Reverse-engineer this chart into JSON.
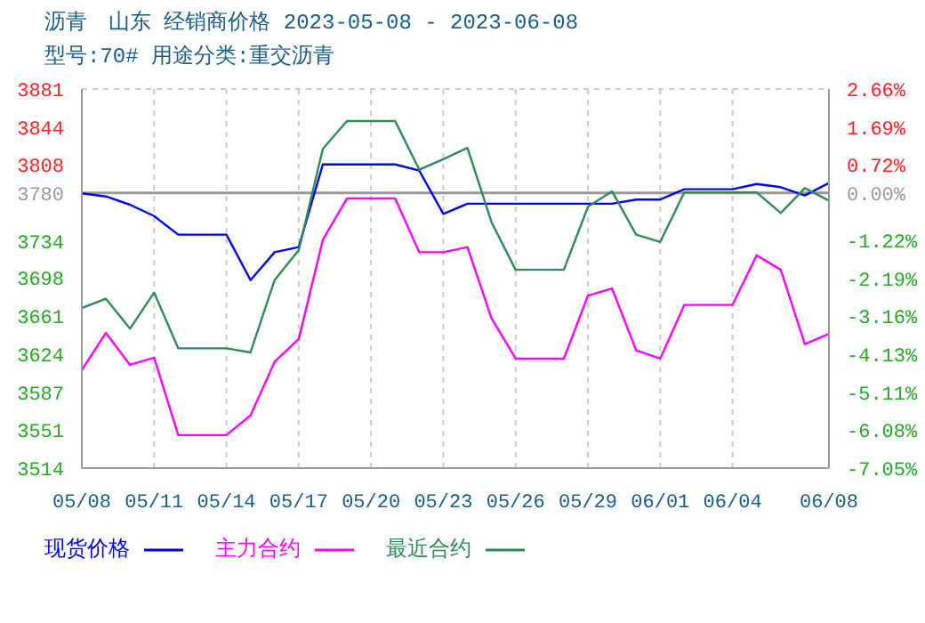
{
  "chart_data": {
    "type": "line",
    "title": "沥青　山东 经销商价格 2023-05-08 - 2023-06-08",
    "subtitle": "型号:70# 用途分类:重交沥青",
    "x": [
      "--05-08",
      "--05-09",
      "--05-10",
      "--05-11",
      "--05-12",
      "--05-13",
      "--05-14",
      "--05-15",
      "--05-16",
      "--05-17",
      "--05-18",
      "--05-19",
      "--05-20",
      "--05-21",
      "--05-22",
      "--05-23",
      "--05-24",
      "--05-25",
      "--05-26",
      "--05-27",
      "--05-28",
      "--05-29",
      "--05-30",
      "--05-31",
      "--06-01",
      "--06-02",
      "--06-03",
      "--06-04",
      "--06-05",
      "--06-06",
      "--06-07",
      "--06-08"
    ],
    "series": [
      {
        "name": "现货价格",
        "color": "#0000ff",
        "values": [
          3780,
          3777,
          3769,
          3758,
          3740,
          3740,
          3740,
          3696,
          3723,
          3728,
          3808,
          3808,
          3808,
          3808,
          3802,
          3760,
          3770,
          3770,
          3770,
          3770,
          3770,
          3770,
          3770,
          3774,
          3774,
          3784,
          3784,
          3784,
          3789,
          3786,
          3778,
          3790
        ]
      },
      {
        "name": "主力合约",
        "color": "#ff00ff",
        "values": [
          3609,
          3645,
          3614,
          3621,
          3546,
          3546,
          3546,
          3565,
          3617,
          3639,
          3735,
          3775,
          3775,
          3775,
          3723,
          3723,
          3728,
          3659,
          3620,
          3620,
          3620,
          3681,
          3688,
          3628,
          3620,
          3672,
          3672,
          3672,
          3720,
          3706,
          3634,
          3644
        ]
      },
      {
        "name": "最近合约",
        "color": "#2e8b57",
        "values": [
          3669,
          3678,
          3649,
          3684,
          3630,
          3630,
          3630,
          3626,
          3696,
          3725,
          3823,
          3850,
          3850,
          3850,
          3803,
          3813,
          3824,
          3752,
          3706,
          3706,
          3706,
          3767,
          3782,
          3740,
          3733,
          3781,
          3781,
          3781,
          3781,
          3761,
          3785,
          3773
        ]
      }
    ],
    "xlim": [
      "--05-08",
      "--06-08"
    ],
    "xticks": [
      {
        "value": "--05-08",
        "label": "05/08"
      },
      {
        "value": "--05-11",
        "label": "05/11"
      },
      {
        "value": "--05-14",
        "label": "05/14"
      },
      {
        "value": "--05-17",
        "label": "05/17"
      },
      {
        "value": "--05-20",
        "label": "05/20"
      },
      {
        "value": "--05-23",
        "label": "05/23"
      },
      {
        "value": "--05-26",
        "label": "05/26"
      },
      {
        "value": "--05-29",
        "label": "05/29"
      },
      {
        "value": "--06-01",
        "label": "06/01"
      },
      {
        "value": "--06-04",
        "label": "06/04"
      },
      {
        "value": "--06-08",
        "label": "06/08"
      }
    ],
    "ylim": [
      3514,
      3881
    ],
    "yticks": [
      3881,
      3844,
      3808,
      3780,
      3734,
      3698,
      3661,
      3624,
      3587,
      3551,
      3514
    ],
    "y2lim": [
      -7.05,
      2.66
    ],
    "y2ticks": [
      {
        "value": 2.66,
        "label": "2.66%"
      },
      {
        "value": 1.69,
        "label": "1.69%"
      },
      {
        "value": 0.72,
        "label": "0.72%"
      },
      {
        "value": 0,
        "label": "0.00%"
      },
      {
        "value": -1.22,
        "label": "-1.22%"
      },
      {
        "value": -2.19,
        "label": "-2.19%"
      },
      {
        "value": -3.16,
        "label": "-3.16%"
      },
      {
        "value": -4.13,
        "label": "-4.13%"
      },
      {
        "value": -5.11,
        "label": "-5.11%"
      },
      {
        "value": -6.08,
        "label": "-6.08%"
      },
      {
        "value": -7.05,
        "label": "-7.05%"
      }
    ],
    "ref_lines": [
      {
        "axis": "y2",
        "value": 0,
        "color": "#999999",
        "line_style": "solid"
      }
    ],
    "grid": true,
    "legend": "bottom",
    "marker": "none",
    "line_style": "solid"
  }
}
